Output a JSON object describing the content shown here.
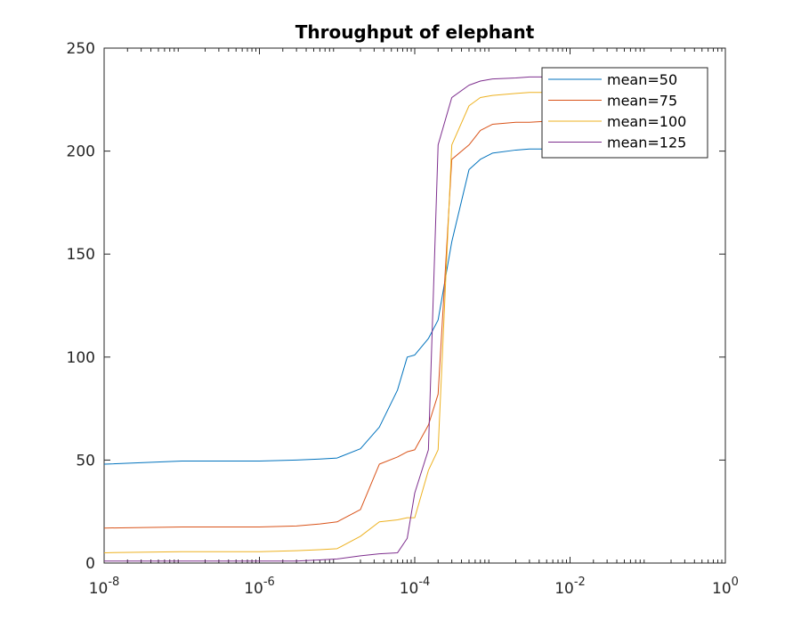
{
  "chart_data": {
    "type": "line",
    "title": "Throughput of elephant",
    "xlabel": "",
    "ylabel": "",
    "x_scale": "log",
    "xlim": [
      1e-08,
      1
    ],
    "ylim": [
      0,
      250
    ],
    "grid": false,
    "legend_position": "top-right",
    "x_ticks": [
      {
        "value": 1e-08,
        "base": "10",
        "exp": "-8"
      },
      {
        "value": 1e-06,
        "base": "10",
        "exp": "-6"
      },
      {
        "value": 0.0001,
        "base": "10",
        "exp": "-4"
      },
      {
        "value": 0.01,
        "base": "10",
        "exp": "-2"
      },
      {
        "value": 1,
        "base": "10",
        "exp": "0"
      }
    ],
    "y_ticks": [
      {
        "value": 0,
        "label": "0"
      },
      {
        "value": 50,
        "label": "50"
      },
      {
        "value": 100,
        "label": "100"
      },
      {
        "value": 150,
        "label": "150"
      },
      {
        "value": 200,
        "label": "200"
      },
      {
        "value": 250,
        "label": "250"
      }
    ],
    "x": [
      1e-08,
      1e-07,
      1e-06,
      3e-06,
      6e-06,
      1e-05,
      2e-05,
      3.5e-05,
      6e-05,
      8e-05,
      0.0001,
      0.00015,
      0.0002,
      0.0003,
      0.0005,
      0.0007,
      0.001,
      0.002,
      0.003,
      0.005,
      0.01
    ],
    "series": [
      {
        "name": "mean=50",
        "color": "#0072BD",
        "values": [
          48,
          49.5,
          49.5,
          50,
          50.5,
          51,
          55.5,
          66,
          84,
          100,
          101,
          109,
          118,
          156,
          191,
          196,
          199,
          200.5,
          201,
          201,
          201
        ]
      },
      {
        "name": "mean=75",
        "color": "#D95319",
        "values": [
          17,
          17.5,
          17.5,
          18,
          19,
          20,
          26,
          48,
          51.5,
          54,
          55,
          67,
          82,
          196,
          203,
          210,
          213,
          214,
          214,
          214.5,
          215
        ]
      },
      {
        "name": "mean=100",
        "color": "#EDB120",
        "values": [
          5,
          5.5,
          5.5,
          6,
          6.5,
          7,
          13,
          20,
          21,
          22,
          22,
          45,
          55,
          203,
          222,
          226,
          227,
          228,
          228.5,
          228.5,
          229
        ]
      },
      {
        "name": "mean=125",
        "color": "#7E2F8E",
        "values": [
          1,
          1,
          1,
          1,
          1.5,
          2,
          3.5,
          4.5,
          5,
          12,
          34,
          55,
          203,
          226,
          232,
          234,
          235,
          235.5,
          236,
          236,
          236
        ]
      }
    ],
    "colors": {
      "axis": "#262626",
      "background": "#ffffff"
    }
  }
}
